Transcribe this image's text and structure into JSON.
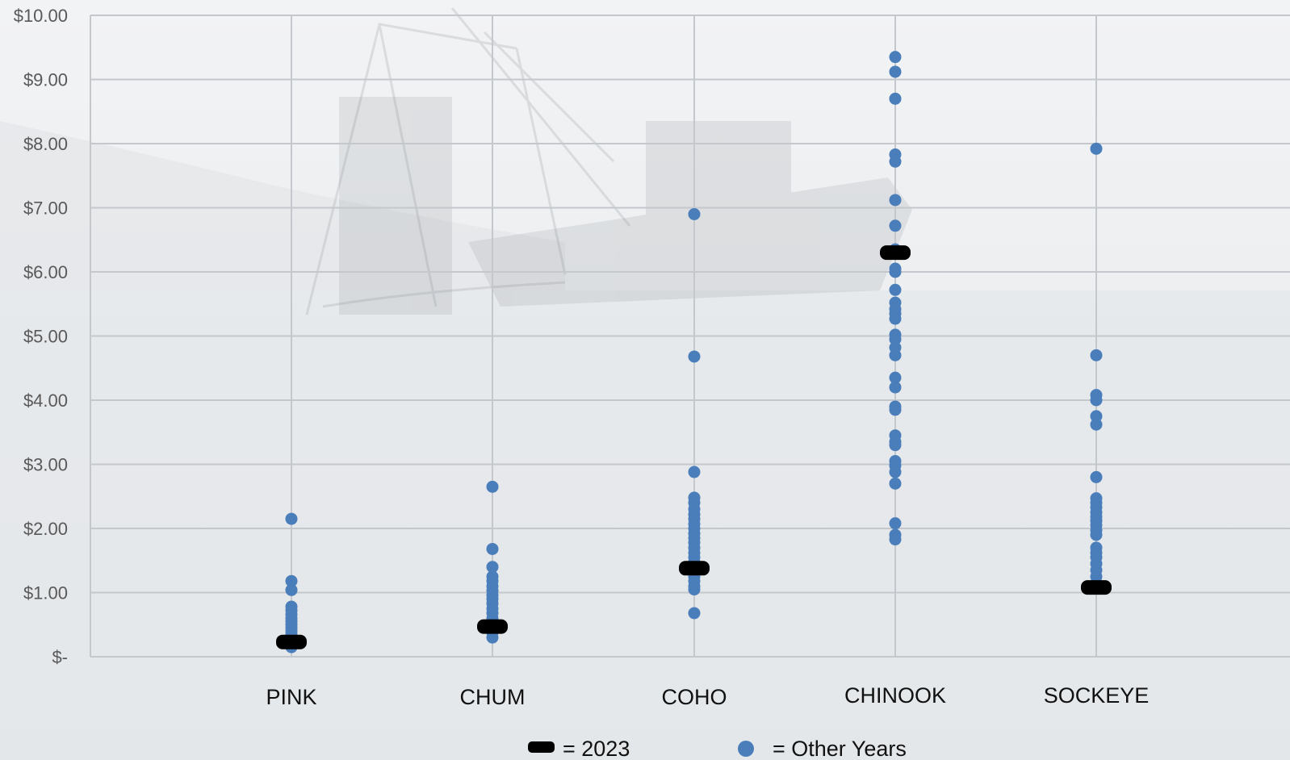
{
  "chart_data": {
    "type": "scatter",
    "categories": [
      "PINK",
      "CHUM",
      "COHO",
      "CHINOOK",
      "SOCKEYE"
    ],
    "y_ticks": [
      "$-",
      "$1.00",
      "$2.00",
      "$3.00",
      "$4.00",
      "$5.00",
      "$6.00",
      "$7.00",
      "$8.00",
      "$9.00",
      "$10.00"
    ],
    "ylim": [
      0,
      10
    ],
    "grid": true,
    "legend_position": "bottom",
    "series": [
      {
        "name": "= 2023",
        "marker": "bar",
        "color": "#000000",
        "values": [
          0.23,
          0.47,
          1.38,
          6.3,
          1.08
        ]
      },
      {
        "name": "= Other Years",
        "marker": "circle",
        "color": "#4a7ebb",
        "points": [
          {
            "category": "PINK",
            "values": [
              2.15,
              1.18,
              1.04,
              0.78,
              0.72,
              0.66,
              0.6,
              0.55,
              0.5,
              0.45,
              0.4,
              0.35,
              0.3,
              0.25,
              0.2,
              0.15
            ]
          },
          {
            "category": "CHUM",
            "values": [
              2.65,
              1.68,
              1.4,
              1.25,
              1.18,
              1.1,
              1.03,
              0.96,
              0.9,
              0.83,
              0.75,
              0.68,
              0.6,
              0.55,
              0.45,
              0.38,
              0.3
            ]
          },
          {
            "category": "COHO",
            "values": [
              6.9,
              4.68,
              2.88,
              2.48,
              2.4,
              2.3,
              2.22,
              2.15,
              2.07,
              2.0,
              1.92,
              1.85,
              1.78,
              1.7,
              1.62,
              1.55,
              1.48,
              1.4,
              1.32,
              1.25,
              1.18,
              1.1,
              1.05,
              0.68
            ]
          },
          {
            "category": "CHINOOK",
            "values": [
              9.35,
              9.12,
              8.7,
              7.83,
              7.72,
              7.12,
              6.72,
              6.35,
              6.05,
              6.0,
              5.72,
              5.52,
              5.42,
              5.35,
              5.27,
              5.02,
              4.95,
              4.82,
              4.7,
              4.35,
              4.2,
              3.9,
              3.85,
              3.45,
              3.35,
              3.3,
              3.05,
              2.98,
              2.88,
              2.7,
              2.08,
              1.9,
              1.83
            ]
          },
          {
            "category": "SOCKEYE",
            "values": [
              7.92,
              4.7,
              4.08,
              4.0,
              3.75,
              3.62,
              2.8,
              2.47,
              2.4,
              2.33,
              2.25,
              2.18,
              2.12,
              2.05,
              1.97,
              1.9,
              1.7,
              1.62,
              1.55,
              1.45,
              1.35,
              1.25,
              1.15
            ]
          }
        ]
      }
    ]
  }
}
